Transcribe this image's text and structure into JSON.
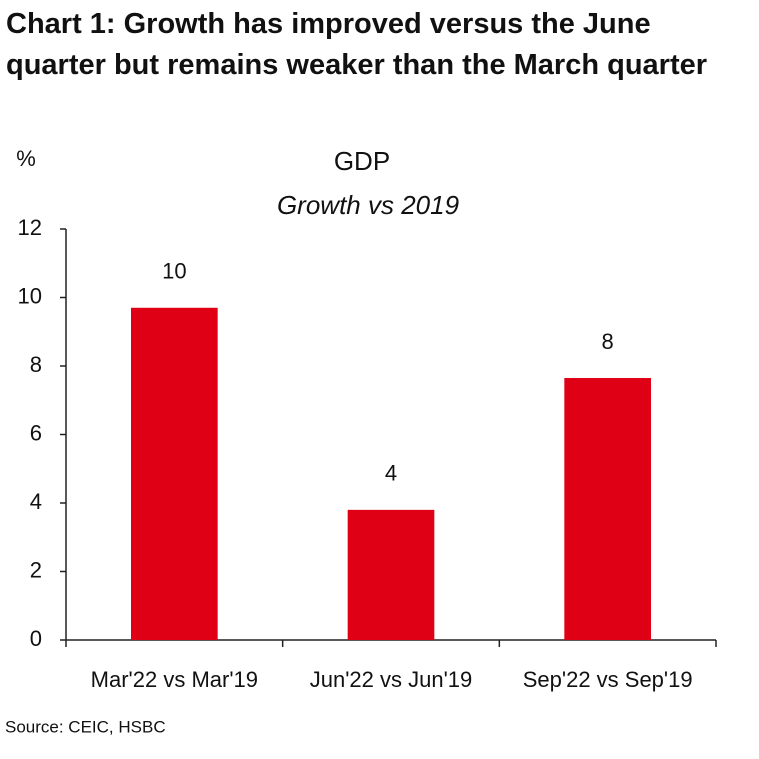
{
  "chart_data": {
    "type": "bar",
    "title": "Chart 1: Growth has improved versus the June quarter but remains weaker than the March quarter",
    "chart_title": "GDP",
    "subtitle": "Growth vs 2019",
    "y_label": "%",
    "source": "Source: CEIC, HSBC",
    "categories": [
      "Mar'22 vs Mar'19",
      "Jun'22 vs Jun'19",
      "Sep'22 vs Sep'19"
    ],
    "values": [
      9.7,
      3.8,
      7.65
    ],
    "value_labels": [
      "10",
      "4",
      "8"
    ],
    "color": "#e00016",
    "ylim": [
      0,
      12
    ],
    "yticks": [
      0,
      2,
      4,
      6,
      8,
      10,
      12
    ],
    "grid": false
  }
}
